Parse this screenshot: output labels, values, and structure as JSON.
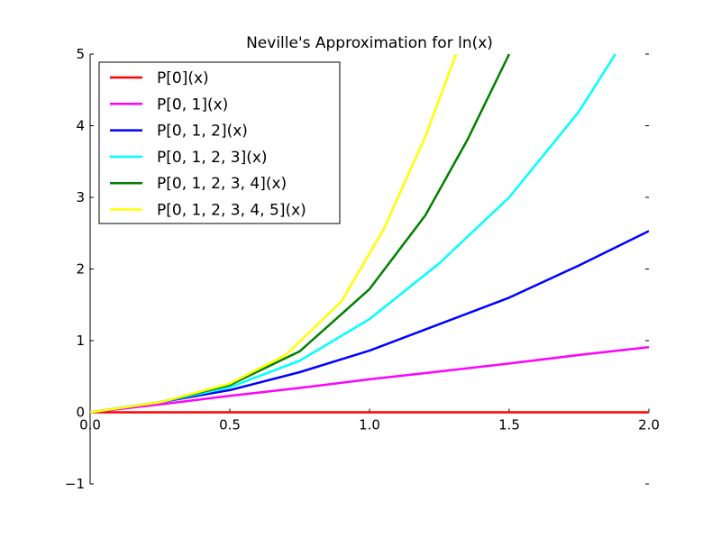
{
  "chart_data": {
    "type": "line",
    "title": "Neville's Approximation for ln(x)",
    "xlabel": "",
    "ylabel": "",
    "xlim": [
      0.0,
      2.0
    ],
    "ylim": [
      -1,
      5
    ],
    "x_ticks": [
      "0.0",
      "0.5",
      "1.0",
      "1.5",
      "2.0"
    ],
    "y_ticks": [
      "−1",
      "0",
      "1",
      "2",
      "3",
      "4",
      "5"
    ],
    "legend_position": "top-left",
    "grid": false,
    "series": [
      {
        "name": "P[0](x)",
        "color": "#ff0000",
        "x": [
          0.0,
          0.25,
          0.5,
          0.75,
          1.0,
          1.25,
          1.5,
          1.75,
          2.0
        ],
        "y": [
          0,
          0,
          0,
          0,
          0,
          0,
          0,
          0,
          0
        ]
      },
      {
        "name": "P[0, 1](x)",
        "color": "#ff00ff",
        "x": [
          0.0,
          0.25,
          0.5,
          0.75,
          1.0,
          1.25,
          1.5,
          1.75,
          2.0
        ],
        "y": [
          0.0,
          0.11,
          0.23,
          0.34,
          0.46,
          0.57,
          0.68,
          0.8,
          0.91
        ]
      },
      {
        "name": "P[0, 1, 2](x)",
        "color": "#0000ff",
        "x": [
          0.0,
          0.25,
          0.5,
          0.75,
          1.0,
          1.25,
          1.5,
          1.75,
          2.0
        ],
        "y": [
          0.0,
          0.14,
          0.31,
          0.56,
          0.86,
          1.23,
          1.6,
          2.05,
          2.53
        ]
      },
      {
        "name": "P[0, 1, 2, 3](x)",
        "color": "#00ffff",
        "x": [
          0.0,
          0.25,
          0.5,
          0.75,
          1.0,
          1.25,
          1.5,
          1.75,
          1.88
        ],
        "y": [
          0.0,
          0.14,
          0.35,
          0.72,
          1.3,
          2.08,
          3.0,
          4.2,
          5.0
        ]
      },
      {
        "name": "P[0, 1, 2, 3, 4](x)",
        "color": "#008000",
        "x": [
          0.0,
          0.25,
          0.5,
          0.75,
          1.0,
          1.2,
          1.35,
          1.5
        ],
        "y": [
          0.0,
          0.14,
          0.38,
          0.85,
          1.72,
          2.75,
          3.8,
          5.0
        ]
      },
      {
        "name": "P[0, 1, 2, 3, 4, 5](x)",
        "color": "#ffff00",
        "x": [
          0.0,
          0.25,
          0.5,
          0.7,
          0.9,
          1.05,
          1.2,
          1.31
        ],
        "y": [
          0.0,
          0.14,
          0.4,
          0.8,
          1.55,
          2.55,
          3.85,
          5.0
        ]
      }
    ]
  }
}
